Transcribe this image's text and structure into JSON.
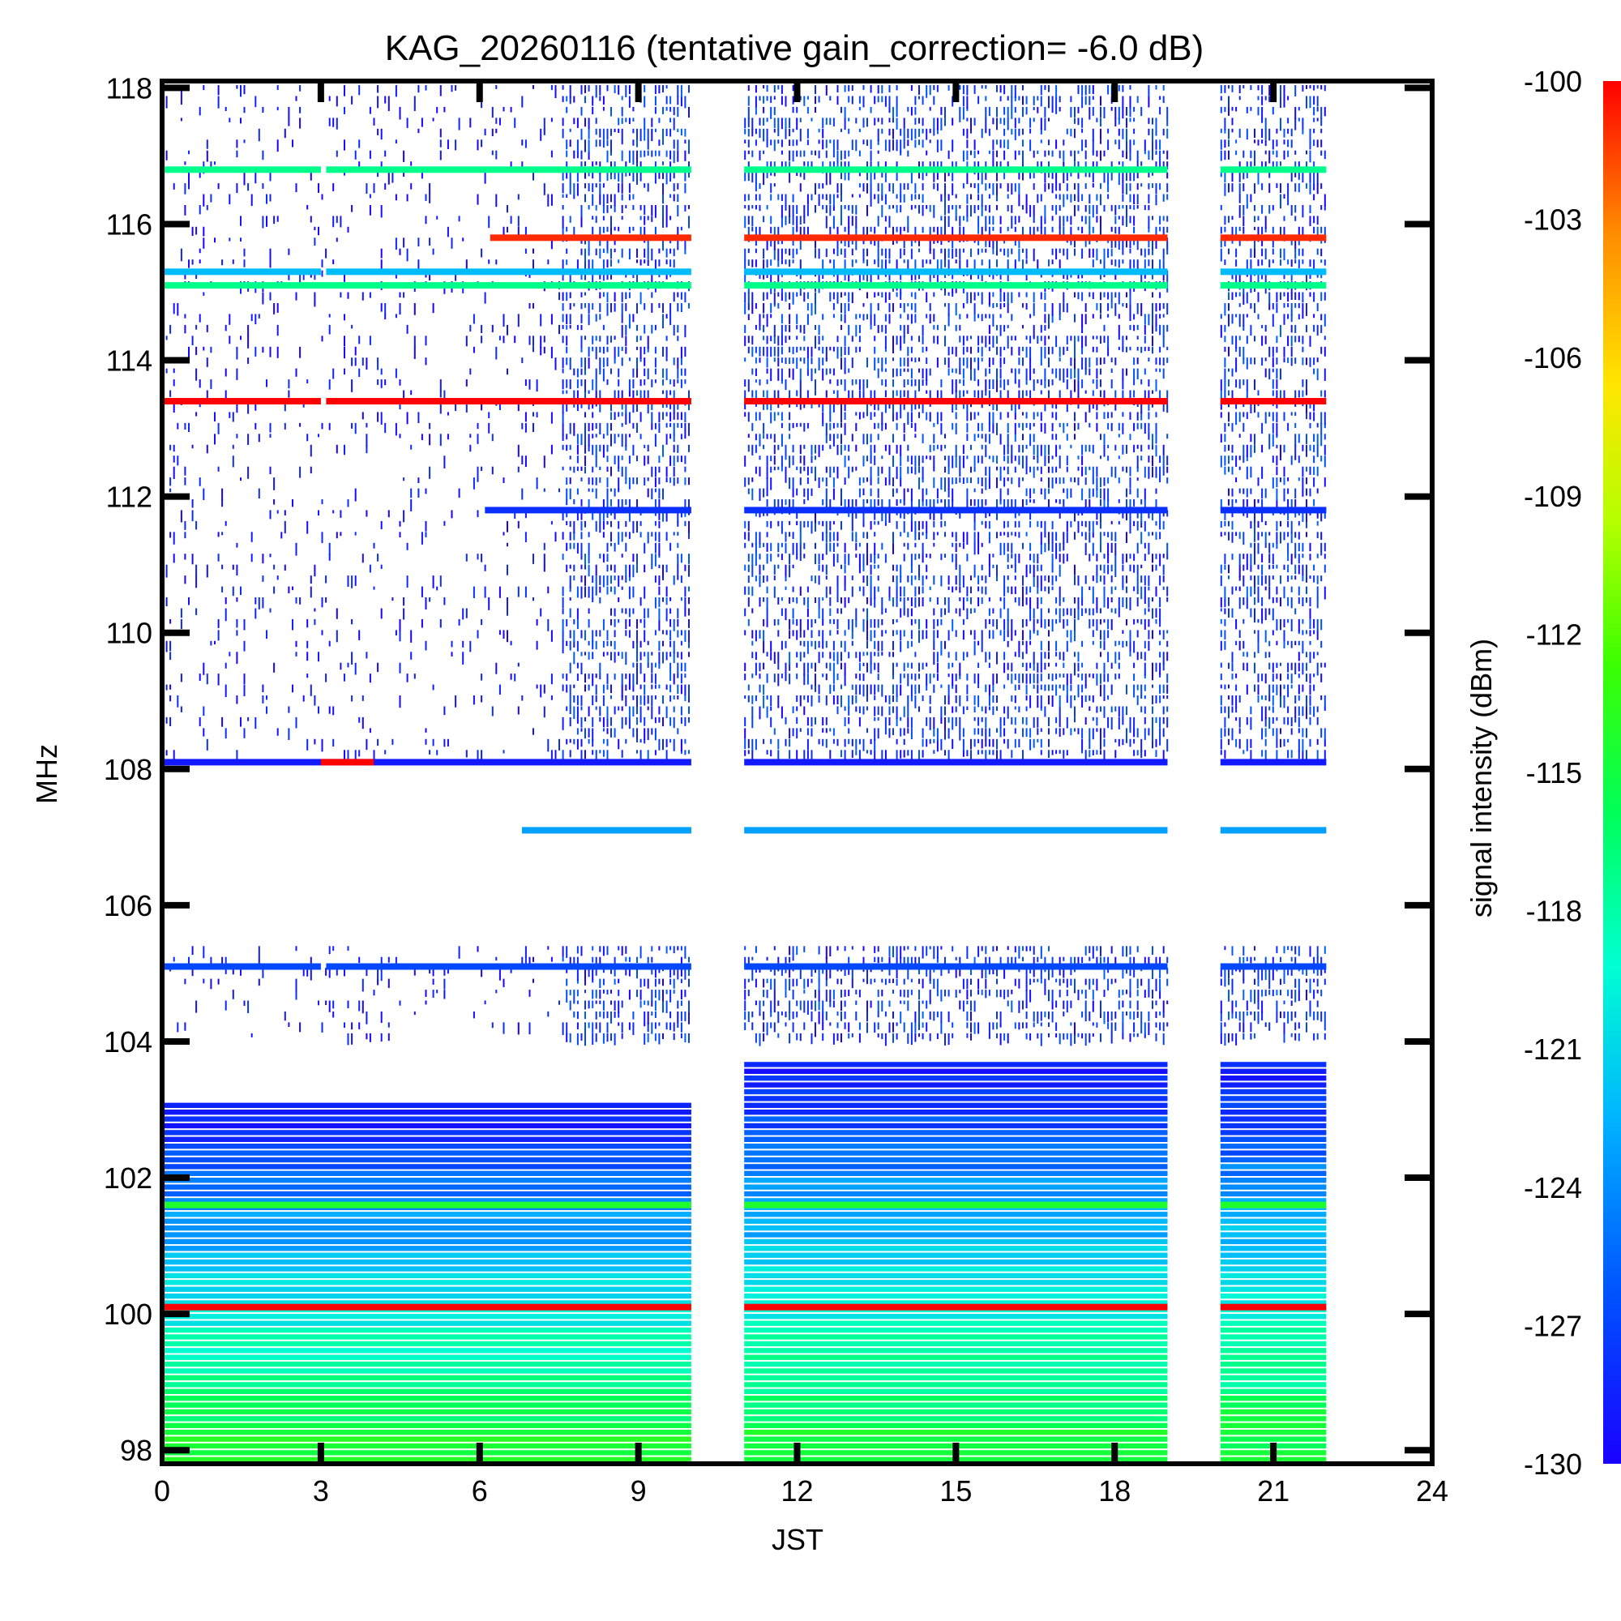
{
  "chart_data": {
    "type": "heatmap",
    "title": "KAG_20260116 (tentative gain_correction= -6.0 dB)",
    "xlabel": "JST",
    "ylabel": "MHz",
    "xlim": [
      0,
      24
    ],
    "ylim": [
      97.8,
      118.1
    ],
    "xticks": [
      0,
      3,
      6,
      9,
      12,
      15,
      18,
      21,
      24
    ],
    "yticks": [
      98,
      100,
      102,
      104,
      106,
      108,
      110,
      112,
      114,
      116,
      118
    ],
    "colorbar": {
      "label": "signal intensity (dBm)",
      "range": [
        -130,
        -100
      ],
      "ticks": [
        -100,
        -103,
        -106,
        -109,
        -112,
        -115,
        -118,
        -121,
        -124,
        -127,
        -130
      ],
      "colors": [
        "#1a00ff",
        "#0050ff",
        "#00b4ff",
        "#00ffd2",
        "#00ff5a",
        "#3cff00",
        "#b4ff00",
        "#ffe600",
        "#ff8c00",
        "#ff0000"
      ]
    },
    "data_gaps_hours": [
      [
        10,
        11
      ],
      [
        19,
        20
      ],
      [
        22,
        24
      ]
    ],
    "observing_periods_hours": [
      [
        0,
        10
      ],
      [
        11,
        19
      ],
      [
        20,
        22
      ]
    ],
    "persistent_lines": [
      {
        "freq_mhz": 116.8,
        "level_dbm": -118,
        "periods": [
          [
            0,
            3
          ],
          [
            3.1,
            10
          ],
          [
            11,
            19
          ],
          [
            20,
            22
          ]
        ]
      },
      {
        "freq_mhz": 115.8,
        "level_dbm": -101,
        "periods": [
          [
            6.2,
            10
          ],
          [
            11,
            19
          ],
          [
            20,
            22
          ]
        ]
      },
      {
        "freq_mhz": 115.3,
        "level_dbm": -123,
        "periods": [
          [
            0,
            3
          ],
          [
            3.1,
            10
          ],
          [
            11,
            19
          ],
          [
            20,
            22
          ]
        ]
      },
      {
        "freq_mhz": 115.1,
        "level_dbm": -118,
        "periods": [
          [
            0,
            10
          ],
          [
            11,
            19
          ],
          [
            20,
            22
          ]
        ]
      },
      {
        "freq_mhz": 113.4,
        "level_dbm": -100,
        "periods": [
          [
            0,
            3
          ],
          [
            3.1,
            10
          ],
          [
            11,
            19
          ],
          [
            20,
            22
          ]
        ]
      },
      {
        "freq_mhz": 111.8,
        "level_dbm": -128,
        "periods": [
          [
            6.1,
            10
          ],
          [
            11,
            19
          ],
          [
            20,
            22
          ]
        ]
      },
      {
        "freq_mhz": 108.1,
        "level_dbm": -129,
        "periods": [
          [
            0,
            10
          ],
          [
            11,
            19
          ],
          [
            20,
            22
          ]
        ]
      },
      {
        "freq_mhz": 108.1,
        "level_dbm": -100,
        "periods": [
          [
            3,
            4
          ]
        ]
      },
      {
        "freq_mhz": 107.1,
        "level_dbm": -124,
        "periods": [
          [
            6.8,
            10
          ],
          [
            11,
            19
          ],
          [
            20,
            22
          ]
        ]
      },
      {
        "freq_mhz": 105.1,
        "level_dbm": -127,
        "periods": [
          [
            0,
            3
          ],
          [
            3.1,
            10
          ],
          [
            11,
            19
          ],
          [
            20,
            22
          ]
        ]
      },
      {
        "freq_mhz": 101.6,
        "level_dbm": -115,
        "periods": [
          [
            0,
            10
          ],
          [
            11,
            19
          ],
          [
            20,
            22
          ]
        ]
      },
      {
        "freq_mhz": 100.1,
        "level_dbm": -100,
        "periods": [
          [
            0,
            10
          ],
          [
            11,
            19
          ],
          [
            20,
            22
          ]
        ]
      }
    ],
    "background_band": {
      "freq_range_mhz": [
        97.8,
        103.6
      ],
      "level_top_dbm": -129,
      "level_bottom_dbm": -115
    }
  }
}
